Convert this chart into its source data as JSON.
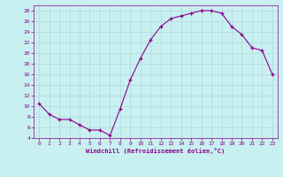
{
  "x": [
    0,
    1,
    2,
    3,
    4,
    5,
    6,
    7,
    8,
    9,
    10,
    11,
    12,
    13,
    14,
    15,
    16,
    17,
    18,
    19,
    20,
    21,
    22,
    23
  ],
  "y": [
    10.5,
    8.5,
    7.5,
    7.5,
    6.5,
    5.5,
    5.5,
    4.5,
    9.5,
    15,
    19,
    22.5,
    25,
    26.5,
    27,
    27.5,
    28,
    28,
    27.5,
    25,
    23.5,
    21,
    20.5,
    16
  ],
  "line_color": "#8B008B",
  "marker_color": "#8B008B",
  "bg_color": "#c8f0f0",
  "grid_color": "#b0d8d8",
  "xlabel": "Windchill (Refroidissement éolien,°C)",
  "xlim": [
    -0.5,
    23.5
  ],
  "ylim": [
    4,
    29
  ],
  "yticks": [
    4,
    6,
    8,
    10,
    12,
    14,
    16,
    18,
    20,
    22,
    24,
    26,
    28
  ],
  "xticks": [
    0,
    1,
    2,
    3,
    4,
    5,
    6,
    7,
    8,
    9,
    10,
    11,
    12,
    13,
    14,
    15,
    16,
    17,
    18,
    19,
    20,
    21,
    22,
    23
  ],
  "axis_color": "#8B008B",
  "font_name": "monospace"
}
